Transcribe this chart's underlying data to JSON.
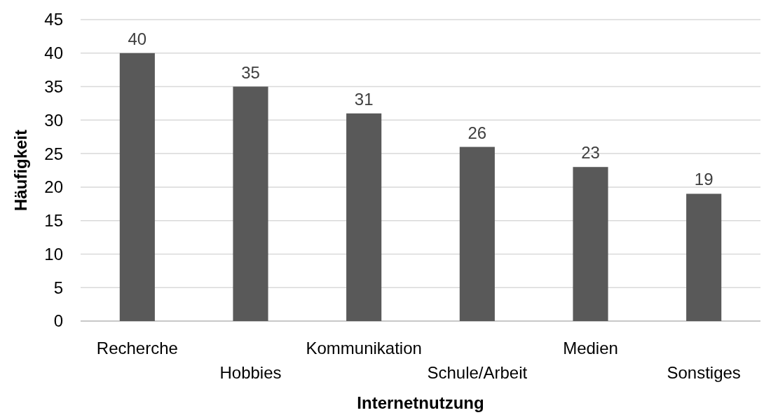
{
  "chart_data": {
    "type": "bar",
    "xlabel": "Internetnutzung",
    "ylabel": "Häufigkeit",
    "categories": [
      "Recherche",
      "Hobbies",
      "Kommunikation",
      "Schule/Arbeit",
      "Medien",
      "Sonstiges"
    ],
    "values": [
      40,
      35,
      31,
      26,
      23,
      19
    ],
    "color": "#595959",
    "ylim": [
      0,
      45
    ],
    "yticks": [
      0,
      5,
      10,
      15,
      20,
      25,
      30,
      35,
      40,
      45
    ],
    "grid": "y",
    "data_labels": true
  }
}
